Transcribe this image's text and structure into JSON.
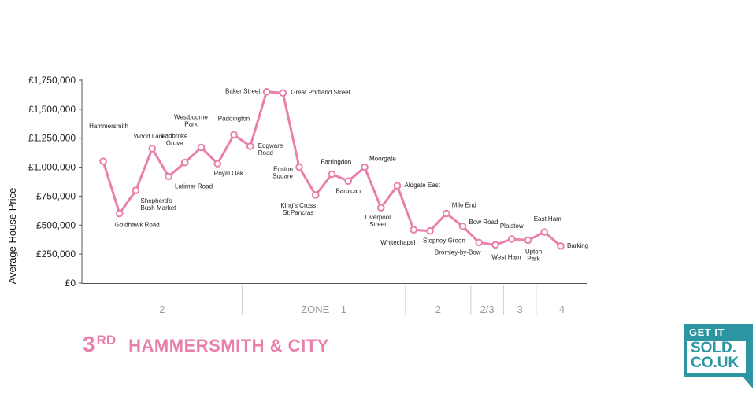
{
  "chart_data": {
    "type": "line",
    "title": "HAMMERSMITH & CITY",
    "rank": {
      "number": "3",
      "suffix": "RD"
    },
    "ylabel": "Average House Price",
    "ylim": [
      0,
      1750000
    ],
    "yticks": [
      0,
      250000,
      500000,
      750000,
      1000000,
      1250000,
      1500000,
      1750000
    ],
    "ytick_labels": [
      "£0",
      "£250,000",
      "£500,000",
      "£750,000",
      "£1,000,000",
      "£1,250,000",
      "£1,500,000",
      "£1,750,000"
    ],
    "line_color": "#e97fab",
    "points": [
      {
        "label": "Hammersmith",
        "value": 1050000
      },
      {
        "label": "Goldhawk Road",
        "value": 600000
      },
      {
        "label": "Shepherd's Bush Market",
        "value": 800000
      },
      {
        "label": "Wood Lane",
        "value": 1160000
      },
      {
        "label": "Latimer Road",
        "value": 920000
      },
      {
        "label": "Ladbroke Grove",
        "value": 1040000
      },
      {
        "label": "Westbourne Park",
        "value": 1170000
      },
      {
        "label": "Royal Oak",
        "value": 1030000
      },
      {
        "label": "Paddington",
        "value": 1280000
      },
      {
        "label": "Edgware Road",
        "value": 1180000
      },
      {
        "label": "Baker Street",
        "value": 1650000
      },
      {
        "label": "Great Portland Street",
        "value": 1640000
      },
      {
        "label": "Euston Square",
        "value": 1000000
      },
      {
        "label": "King's Cross St.Pancras",
        "value": 760000
      },
      {
        "label": "Farringdon",
        "value": 940000
      },
      {
        "label": "Barbican",
        "value": 880000
      },
      {
        "label": "Moorgate",
        "value": 1000000
      },
      {
        "label": "Liverpool Street",
        "value": 650000
      },
      {
        "label": "Aldgate East",
        "value": 840000
      },
      {
        "label": "Whitechapel",
        "value": 460000
      },
      {
        "label": "Stepney Green",
        "value": 450000
      },
      {
        "label": "Mile End",
        "value": 600000
      },
      {
        "label": "Bow Road",
        "value": 490000
      },
      {
        "label": "Bromley-by-Bow",
        "value": 350000
      },
      {
        "label": "West Ham",
        "value": 330000
      },
      {
        "label": "Plaistow",
        "value": 380000
      },
      {
        "label": "Upton Park",
        "value": 370000
      },
      {
        "label": "East Ham",
        "value": 440000
      },
      {
        "label": "Barking",
        "value": 320000
      }
    ],
    "zones": [
      {
        "label": "2",
        "from": 0,
        "to": 8
      },
      {
        "label": "ZONE    1",
        "from": 9,
        "to": 18
      },
      {
        "label": "2",
        "from": 19,
        "to": 22
      },
      {
        "label": "2/3",
        "from": 23,
        "to": 24
      },
      {
        "label": "3",
        "from": 25,
        "to": 26
      },
      {
        "label": "4",
        "from": 27,
        "to": 28
      }
    ]
  },
  "logo": {
    "tagline": "GET IT",
    "line1": "SOLD.",
    "line2": "CO.UK",
    "color": "#2b96a2"
  }
}
